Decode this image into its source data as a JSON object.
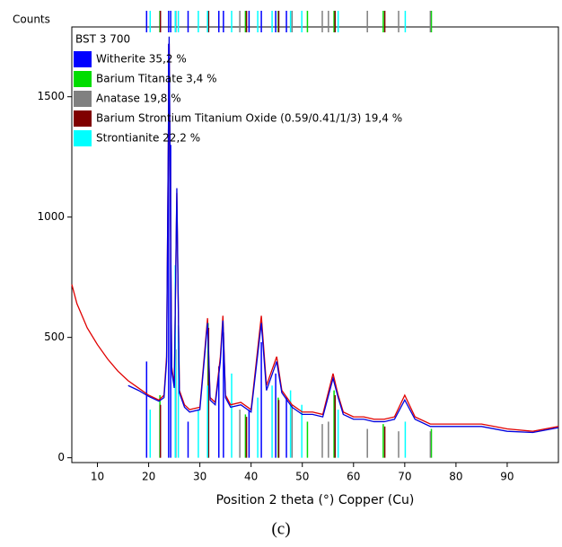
{
  "chart_data": {
    "type": "xrd",
    "y_axis_label": "Counts",
    "x_axis_label": "Position 2 theta (°) Copper (Cu)",
    "caption": "(c)",
    "legend_title": "BST 3 700",
    "xlim": [
      5,
      100
    ],
    "ylim": [
      -20,
      1790
    ],
    "xticks": [
      10,
      20,
      30,
      40,
      50,
      60,
      70,
      80,
      90
    ],
    "yticks": [
      0,
      500,
      1000,
      1500
    ],
    "x": [
      5,
      6,
      7,
      8,
      10,
      12,
      14,
      16,
      18,
      20,
      22,
      23,
      23.5,
      24,
      24.5,
      25,
      25.5,
      26,
      27,
      28,
      30,
      31.5,
      32,
      33,
      34,
      34.5,
      35,
      36,
      38,
      40,
      42,
      43,
      44,
      45,
      46,
      48,
      50,
      52,
      54,
      56,
      57,
      58,
      60,
      62,
      64,
      66,
      68,
      70,
      72,
      75,
      80,
      85,
      90,
      95,
      100
    ],
    "observed": {
      "color": "#e00000",
      "values": [
        720,
        640,
        590,
        540,
        470,
        410,
        360,
        320,
        290,
        260,
        240,
        260,
        420,
        1720,
        380,
        300,
        1100,
        280,
        220,
        200,
        210,
        580,
        250,
        230,
        420,
        590,
        260,
        220,
        230,
        200,
        590,
        300,
        360,
        420,
        280,
        220,
        190,
        190,
        180,
        350,
        260,
        190,
        170,
        170,
        160,
        160,
        170,
        260,
        170,
        140,
        140,
        140,
        120,
        110,
        130
      ]
    },
    "calculated": {
      "color": "#0000dd",
      "values": [
        null,
        null,
        null,
        null,
        null,
        null,
        null,
        300,
        280,
        255,
        235,
        250,
        400,
        1750,
        360,
        290,
        1120,
        270,
        210,
        190,
        200,
        560,
        240,
        220,
        400,
        570,
        250,
        210,
        220,
        190,
        560,
        280,
        340,
        400,
        270,
        210,
        180,
        180,
        170,
        330,
        250,
        180,
        160,
        160,
        150,
        150,
        160,
        240,
        160,
        130,
        130,
        130,
        110,
        105,
        125
      ]
    },
    "series": [
      {
        "name": "Witherite 35,2 %",
        "color": "#0000ff",
        "x": [
          19.6,
          23.9,
          24.3,
          27.7,
          33.7,
          34.6,
          39.6,
          42.0,
          44.8,
          46.9
        ],
        "values": [
          400,
          1720,
          1300,
          150,
          380,
          520,
          200,
          480,
          350,
          250
        ]
      },
      {
        "name": "Barium Titanate 3,4 %",
        "color": "#00dd00",
        "x": [
          22.2,
          31.6,
          38.9,
          45.3,
          51.0,
          56.2,
          65.8,
          75.2
        ],
        "values": [
          260,
          560,
          180,
          250,
          150,
          280,
          140,
          120
        ]
      },
      {
        "name": "Anatase 19,8 %",
        "color": "#808080",
        "x": [
          25.3,
          37.8,
          48.0,
          53.9,
          55.1,
          62.7,
          68.8,
          75.0
        ],
        "values": [
          450,
          200,
          220,
          140,
          150,
          120,
          110,
          110
        ]
      },
      {
        "name": "Barium Strontium Titanium Oxide (0.59/0.41/1/3) 19,4 %",
        "color": "#800000",
        "x": [
          22.3,
          31.7,
          39.1,
          45.4,
          56.4,
          66.1
        ],
        "values": [
          220,
          540,
          170,
          240,
          260,
          130
        ]
      },
      {
        "name": "Strontianite 22,2 %",
        "color": "#00ffff",
        "x": [
          20.3,
          25.2,
          25.8,
          29.7,
          31.5,
          36.2,
          41.3,
          44.1,
          47.7,
          49.9,
          57.0,
          70.1
        ],
        "values": [
          200,
          800,
          550,
          200,
          300,
          350,
          250,
          300,
          280,
          220,
          200,
          150
        ]
      }
    ]
  }
}
